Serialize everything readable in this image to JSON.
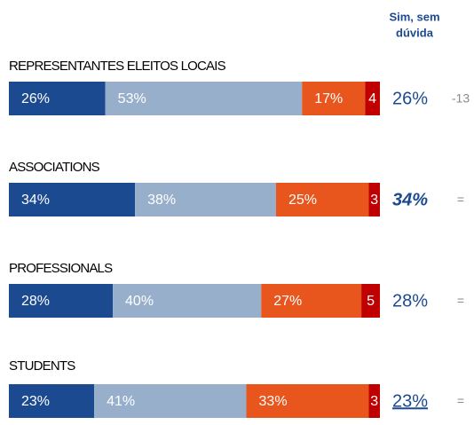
{
  "chart_data": {
    "type": "stacked-bar",
    "categories": [
      "REPRESENTANTES ELEITOS LOCAIS",
      "ASSOCIATIONS",
      "PROFESSIONALS",
      "STUDENTS"
    ],
    "series": [
      {
        "color": "#1b4a91",
        "values": [
          26,
          34,
          28,
          23
        ],
        "value_labels": [
          "26%",
          "34%",
          "28%",
          "23%"
        ]
      },
      {
        "color": "#98afcc",
        "values": [
          53,
          38,
          40,
          41
        ],
        "value_labels": [
          "53%",
          "38%",
          "40%",
          "41%"
        ]
      },
      {
        "color": "#e8561e",
        "values": [
          17,
          25,
          27,
          33
        ],
        "value_labels": [
          "17%",
          "25%",
          "27%",
          "33%"
        ]
      },
      {
        "color": "#c00000",
        "values": [
          4,
          3,
          5,
          3
        ]
      }
    ],
    "xlim": [
      0,
      100
    ],
    "summary": {
      "header": [
        "Sim, sem",
        "dúvida"
      ],
      "labels": [
        "26%",
        "34%",
        "28%",
        "23%"
      ],
      "changes": [
        "-13",
        "=",
        "=",
        "="
      ]
    }
  }
}
